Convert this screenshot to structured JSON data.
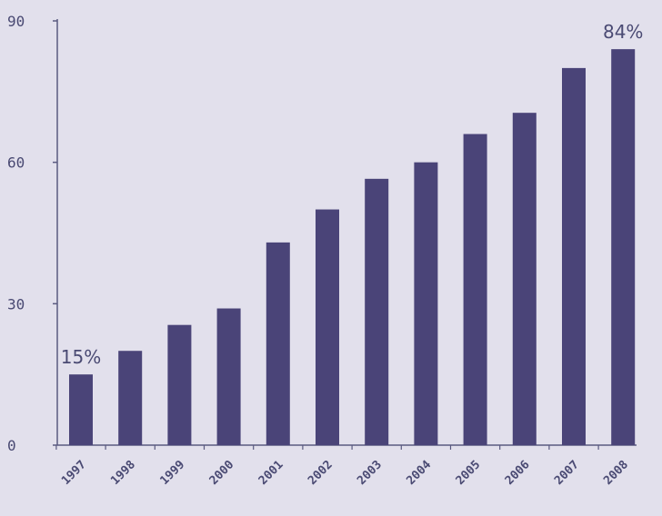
{
  "colors": {
    "background": "#e2e0ec",
    "bar": "#4a4478",
    "axis": "#5a5a80",
    "text": "#4a4a73"
  },
  "chart_data": {
    "type": "bar",
    "title": "",
    "xlabel": "",
    "ylabel": "",
    "categories": [
      "1997",
      "1998",
      "1999",
      "2000",
      "2001",
      "2002",
      "2003",
      "2004",
      "2005",
      "2006",
      "2007",
      "2008"
    ],
    "values": [
      15,
      20,
      25.5,
      29,
      43,
      50,
      56.5,
      60,
      66,
      70.5,
      80,
      84
    ],
    "data_labels": [
      {
        "index": 0,
        "text": "15%"
      },
      {
        "index": 11,
        "text": "84%"
      }
    ],
    "y_ticks": [
      0,
      30,
      60,
      90
    ],
    "ylim": [
      0,
      90
    ],
    "grid": false,
    "legend": "none"
  }
}
